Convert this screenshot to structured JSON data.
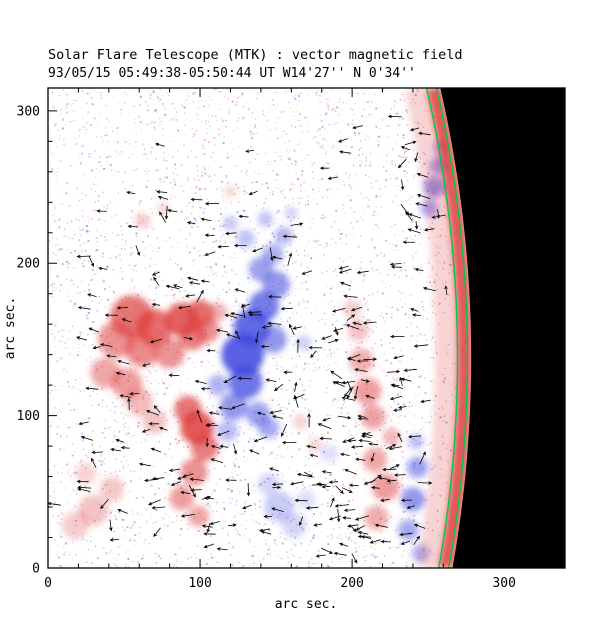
{
  "title": "Solar Flare Telescope (MTK) : vector magnetic field",
  "subtitle": "93/05/15  05:49:38-05:50:44 UT   W14'27''  N 0'34''",
  "chart_data": {
    "type": "heatmap",
    "title": "Solar Flare Telescope (MTK) : vector magnetic field",
    "subtitle": "93/05/15  05:49:38-05:50:44 UT   W14'27''  N 0'34''",
    "xlabel": "arc sec.",
    "ylabel": "arc sec.",
    "xlim": [
      0,
      340
    ],
    "ylim": [
      0,
      315
    ],
    "xticks": [
      0,
      100,
      200,
      300
    ],
    "yticks": [
      0,
      100,
      200,
      300
    ],
    "minor_tick_step": 20,
    "colors": {
      "positive": "#dd3c3c",
      "negative": "#3c46dd",
      "sky": "#000000",
      "contour": "#00c844",
      "axis": "#000000",
      "background": "#ffffff",
      "arrow": "#000000"
    },
    "limb_model": {
      "coeff_a": -0.0006477,
      "coeff_b": 0.1786,
      "coeff_c": 266
    },
    "red_blobs": [
      [
        55,
        165,
        14,
        0.7
      ],
      [
        70,
        158,
        12,
        0.75
      ],
      [
        88,
        163,
        11,
        0.8
      ],
      [
        100,
        167,
        9,
        0.75
      ],
      [
        45,
        150,
        12,
        0.55
      ],
      [
        62,
        143,
        11,
        0.6
      ],
      [
        80,
        141,
        10,
        0.55
      ],
      [
        95,
        152,
        9,
        0.65
      ],
      [
        38,
        128,
        10,
        0.45
      ],
      [
        52,
        121,
        10,
        0.5
      ],
      [
        105,
        156,
        8,
        0.55
      ],
      [
        112,
        168,
        6,
        0.4
      ],
      [
        98,
        92,
        11,
        0.85
      ],
      [
        92,
        104,
        9,
        0.7
      ],
      [
        103,
        79,
        9,
        0.65
      ],
      [
        96,
        63,
        9,
        0.55
      ],
      [
        88,
        46,
        8,
        0.5
      ],
      [
        99,
        34,
        7,
        0.45
      ],
      [
        70,
        96,
        8,
        0.3
      ],
      [
        60,
        109,
        9,
        0.35
      ],
      [
        30,
        38,
        10,
        0.3
      ],
      [
        18,
        28,
        9,
        0.25
      ],
      [
        42,
        52,
        8,
        0.28
      ],
      [
        25,
        62,
        7,
        0.22
      ],
      [
        210,
        116,
        9,
        0.5
      ],
      [
        206,
        136,
        8,
        0.42
      ],
      [
        214,
        99,
        8,
        0.48
      ],
      [
        204,
        156,
        7,
        0.32
      ],
      [
        200,
        170,
        6,
        0.26
      ],
      [
        215,
        71,
        8,
        0.45
      ],
      [
        222,
        53,
        9,
        0.5
      ],
      [
        216,
        33,
        8,
        0.42
      ],
      [
        226,
        86,
        6,
        0.36
      ],
      [
        62,
        228,
        5,
        0.28
      ],
      [
        76,
        236,
        4,
        0.22
      ],
      [
        120,
        247,
        4,
        0.2
      ],
      [
        166,
        96,
        5,
        0.22
      ],
      [
        176,
        81,
        5,
        0.2
      ]
    ],
    "blue_blobs": [
      [
        128,
        140,
        14,
        0.85
      ],
      [
        134,
        158,
        12,
        0.8
      ],
      [
        130,
        122,
        11,
        0.75
      ],
      [
        142,
        172,
        10,
        0.7
      ],
      [
        122,
        106,
        9,
        0.55
      ],
      [
        138,
        101,
        8,
        0.5
      ],
      [
        148,
        150,
        9,
        0.55
      ],
      [
        150,
        186,
        9,
        0.55
      ],
      [
        140,
        196,
        8,
        0.5
      ],
      [
        148,
        206,
        7,
        0.42
      ],
      [
        155,
        218,
        6,
        0.38
      ],
      [
        130,
        216,
        6,
        0.32
      ],
      [
        120,
        226,
        5,
        0.28
      ],
      [
        143,
        229,
        5,
        0.32
      ],
      [
        160,
        233,
        4,
        0.26
      ],
      [
        145,
        92,
        7,
        0.45
      ],
      [
        118,
        90,
        7,
        0.35
      ],
      [
        112,
        120,
        7,
        0.4
      ],
      [
        168,
        148,
        5,
        0.26
      ],
      [
        152,
        40,
        10,
        0.28
      ],
      [
        162,
        28,
        8,
        0.22
      ],
      [
        145,
        55,
        7,
        0.22
      ],
      [
        170,
        45,
        6,
        0.18
      ],
      [
        185,
        75,
        6,
        0.16
      ],
      [
        240,
        45,
        8,
        0.55
      ],
      [
        243,
        66,
        7,
        0.5
      ],
      [
        237,
        25,
        7,
        0.45
      ],
      [
        245,
        10,
        6,
        0.4
      ],
      [
        242,
        83,
        5,
        0.35
      ],
      [
        254,
        250,
        7,
        0.55
      ],
      [
        257,
        264,
        6,
        0.5
      ],
      [
        251,
        236,
        6,
        0.45
      ],
      [
        258,
        276,
        5,
        0.4
      ]
    ],
    "limb_bands": [
      {
        "offset": 4,
        "width": 15,
        "opacity": 0.85
      },
      {
        "offset": 15,
        "width": 26,
        "opacity": 0.22
      }
    ],
    "contour_offsets": [
      2.5,
      9
    ],
    "noise": {
      "count": 5000,
      "seed": 1234,
      "min_alpha": 0.1,
      "alpha_range": 0.35
    },
    "arrows": {
      "seed": 99,
      "length_min": 5,
      "length_range": 4,
      "zones": [
        {
          "x": [
            25,
            212
          ],
          "y": [
            38,
            205
          ],
          "count": 150
        },
        {
          "x": [
            55,
            185
          ],
          "y": [
            205,
            248
          ],
          "count": 20
        },
        {
          "x": [
            190,
            252
          ],
          "y": [
            5,
            175
          ],
          "count": 70
        },
        {
          "x": [
            228,
            263
          ],
          "y": [
            175,
            308
          ],
          "count": 26
        },
        {
          "x": [
            5,
            255
          ],
          "y": [
            5,
            310
          ],
          "count": 32
        },
        {
          "x": [
            40,
            230
          ],
          "y": [
            8,
            38
          ],
          "count": 26
        }
      ]
    }
  }
}
